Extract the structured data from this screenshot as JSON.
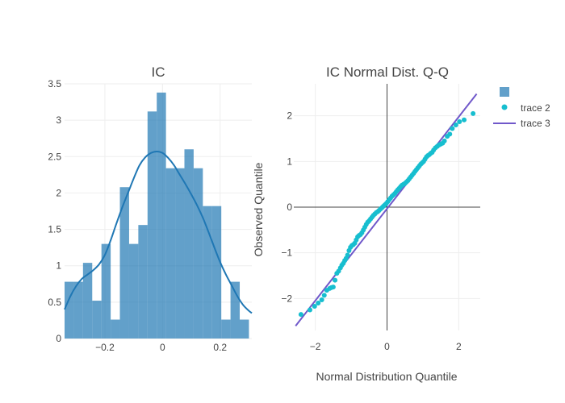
{
  "chart_data": [
    {
      "type": "bar",
      "subtype": "histogram_with_kde",
      "title": "IC",
      "xlabel": "",
      "ylabel": "",
      "xlim": [
        -0.34,
        0.31
      ],
      "ylim": [
        0,
        3.5
      ],
      "xticks": [
        -0.2,
        0,
        0.2
      ],
      "xtick_labels": [
        "−0.2",
        "0",
        "0.2"
      ],
      "yticks": [
        0,
        0.5,
        1,
        1.5,
        2,
        2.5,
        3,
        3.5
      ],
      "ytick_labels": [
        "0",
        "0.5",
        "1",
        "1.5",
        "2",
        "2.5",
        "3",
        "3.5"
      ],
      "bar_color": "#1f77b4",
      "bins": [
        {
          "x0": -0.34,
          "x1": -0.308,
          "value": 0.78
        },
        {
          "x0": -0.308,
          "x1": -0.276,
          "value": 0.78
        },
        {
          "x0": -0.276,
          "x1": -0.244,
          "value": 1.04
        },
        {
          "x0": -0.244,
          "x1": -0.212,
          "value": 0.52
        },
        {
          "x0": -0.212,
          "x1": -0.18,
          "value": 1.3
        },
        {
          "x0": -0.18,
          "x1": -0.148,
          "value": 0.26
        },
        {
          "x0": -0.148,
          "x1": -0.116,
          "value": 2.08
        },
        {
          "x0": -0.116,
          "x1": -0.084,
          "value": 1.3
        },
        {
          "x0": -0.084,
          "x1": -0.052,
          "value": 1.56
        },
        {
          "x0": -0.052,
          "x1": -0.02,
          "value": 3.12
        },
        {
          "x0": -0.02,
          "x1": 0.012,
          "value": 3.38
        },
        {
          "x0": 0.012,
          "x1": 0.044,
          "value": 2.34
        },
        {
          "x0": 0.044,
          "x1": 0.076,
          "value": 2.34
        },
        {
          "x0": 0.076,
          "x1": 0.108,
          "value": 2.6
        },
        {
          "x0": 0.108,
          "x1": 0.14,
          "value": 2.34
        },
        {
          "x0": 0.14,
          "x1": 0.172,
          "value": 1.82
        },
        {
          "x0": 0.172,
          "x1": 0.204,
          "value": 1.82
        },
        {
          "x0": 0.204,
          "x1": 0.236,
          "value": 0.26
        },
        {
          "x0": 0.236,
          "x1": 0.268,
          "value": 0.78
        },
        {
          "x0": 0.268,
          "x1": 0.3,
          "value": 0.26
        }
      ],
      "kde": {
        "color": "#1f77b4",
        "x": [
          -0.34,
          -0.32,
          -0.3,
          -0.28,
          -0.26,
          -0.24,
          -0.22,
          -0.2,
          -0.18,
          -0.16,
          -0.14,
          -0.12,
          -0.1,
          -0.08,
          -0.06,
          -0.04,
          -0.02,
          0.0,
          0.02,
          0.04,
          0.06,
          0.08,
          0.1,
          0.12,
          0.14,
          0.16,
          0.18,
          0.2,
          0.22,
          0.24,
          0.26,
          0.28,
          0.3,
          0.31
        ],
        "y": [
          0.4,
          0.58,
          0.72,
          0.82,
          0.88,
          0.94,
          1.02,
          1.15,
          1.35,
          1.58,
          1.8,
          2.0,
          2.2,
          2.38,
          2.49,
          2.55,
          2.57,
          2.55,
          2.48,
          2.38,
          2.25,
          2.12,
          1.98,
          1.83,
          1.66,
          1.46,
          1.25,
          1.05,
          0.88,
          0.73,
          0.58,
          0.46,
          0.38,
          0.35
        ]
      }
    },
    {
      "type": "scatter",
      "subtype": "qq_plot",
      "title": "IC Normal Dist. Q-Q",
      "xlabel": "Normal Distribution Quantile",
      "ylabel": "Observed Quantile",
      "xlim": [
        -2.6,
        2.6
      ],
      "ylim": [
        -2.7,
        2.7
      ],
      "xticks": [
        -2,
        0,
        2
      ],
      "xtick_labels": [
        "−2",
        "0",
        "2"
      ],
      "yticks": [
        -2,
        -1,
        0,
        1,
        2
      ],
      "ytick_labels": [
        "−2",
        "−1",
        "0",
        "1",
        "2"
      ],
      "series": [
        {
          "name": "trace 2",
          "color": "#17becf",
          "x": [
            -2.4,
            -2.15,
            -2.02,
            -1.92,
            -1.82,
            -1.75,
            -1.68,
            -1.6,
            -1.55,
            -1.5,
            -1.45,
            -1.4,
            -1.35,
            -1.3,
            -1.26,
            -1.22,
            -1.18,
            -1.14,
            -1.1,
            -1.06,
            -1.02,
            -0.98,
            -0.94,
            -0.9,
            -0.86,
            -0.82,
            -0.78,
            -0.74,
            -0.7,
            -0.66,
            -0.62,
            -0.58,
            -0.54,
            -0.5,
            -0.46,
            -0.42,
            -0.38,
            -0.34,
            -0.3,
            -0.26,
            -0.22,
            -0.18,
            -0.14,
            -0.1,
            -0.06,
            -0.02,
            0.02,
            0.06,
            0.1,
            0.14,
            0.18,
            0.22,
            0.26,
            0.3,
            0.34,
            0.38,
            0.42,
            0.46,
            0.5,
            0.54,
            0.58,
            0.62,
            0.66,
            0.7,
            0.74,
            0.78,
            0.82,
            0.86,
            0.9,
            0.94,
            0.98,
            1.02,
            1.06,
            1.1,
            1.14,
            1.18,
            1.22,
            1.26,
            1.3,
            1.35,
            1.4,
            1.45,
            1.5,
            1.55,
            1.6,
            1.68,
            1.75,
            1.82,
            1.92,
            2.02,
            2.15,
            2.4
          ],
          "y": [
            -2.35,
            -2.25,
            -2.17,
            -2.1,
            -2.03,
            -1.93,
            -1.82,
            -1.78,
            -1.76,
            -1.75,
            -1.6,
            -1.45,
            -1.4,
            -1.33,
            -1.27,
            -1.23,
            -1.17,
            -1.12,
            -1.05,
            -0.95,
            -0.88,
            -0.84,
            -0.82,
            -0.79,
            -0.72,
            -0.65,
            -0.62,
            -0.6,
            -0.56,
            -0.5,
            -0.44,
            -0.38,
            -0.33,
            -0.3,
            -0.26,
            -0.22,
            -0.18,
            -0.15,
            -0.12,
            -0.1,
            -0.07,
            -0.04,
            -0.01,
            0.02,
            0.05,
            0.08,
            0.12,
            0.16,
            0.2,
            0.24,
            0.27,
            0.3,
            0.34,
            0.38,
            0.41,
            0.45,
            0.48,
            0.5,
            0.52,
            0.55,
            0.58,
            0.62,
            0.66,
            0.7,
            0.74,
            0.78,
            0.82,
            0.86,
            0.9,
            0.94,
            0.97,
            1.0,
            1.05,
            1.1,
            1.13,
            1.15,
            1.18,
            1.2,
            1.25,
            1.3,
            1.33,
            1.36,
            1.38,
            1.4,
            1.45,
            1.55,
            1.6,
            1.72,
            1.8,
            1.87,
            1.91,
            2.05
          ]
        },
        {
          "name": "trace 3",
          "color": "#7058ca",
          "kind": "line",
          "x": [
            -2.55,
            2.5
          ],
          "y": [
            -2.6,
            2.48
          ]
        }
      ],
      "legend": {
        "position": "top-right",
        "entries": [
          "",
          "trace 2",
          "trace 3"
        ],
        "first_entry_color": "#1f77b4"
      }
    }
  ]
}
